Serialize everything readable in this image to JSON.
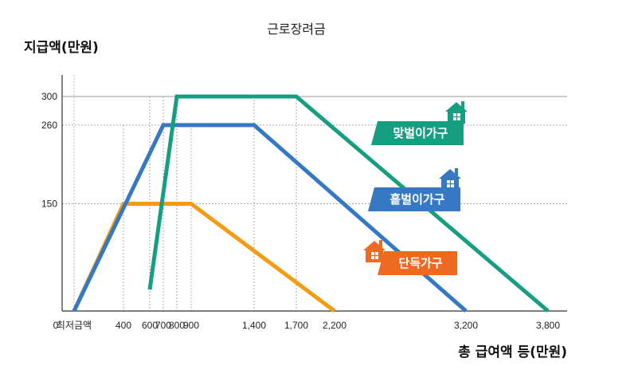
{
  "chart_data": {
    "type": "line",
    "title": "근로장려금",
    "ylabel": "지급액(만원)",
    "xlabel": "총 급여액 등(만원)",
    "x_tick_labels": [
      "0",
      "최저금액",
      "400",
      "600",
      "700",
      "800",
      "900",
      "1,400",
      "1,700",
      "2,200",
      "3,200",
      "3,800"
    ],
    "y_tick_labels": [
      "150",
      "260",
      "300"
    ],
    "ylim": [
      0,
      300
    ],
    "grid": "dotted reference lines at breakpoints",
    "series": [
      {
        "name": "단독가구",
        "color": "#f39c12",
        "label_color": "#ef6a21",
        "points": [
          [
            "최저금액",
            0
          ],
          [
            400,
            150
          ],
          [
            900,
            150
          ],
          [
            2200,
            0
          ]
        ]
      },
      {
        "name": "홑벌이가구",
        "color": "#3578c4",
        "label_color": "#3578c4",
        "points": [
          [
            "최저금액",
            0
          ],
          [
            700,
            260
          ],
          [
            1400,
            260
          ],
          [
            3200,
            0
          ]
        ]
      },
      {
        "name": "맞벌이가구",
        "color": "#159e80",
        "label_color": "#159e80",
        "points": [
          [
            600,
            30
          ],
          [
            800,
            300
          ],
          [
            1700,
            300
          ],
          [
            3800,
            0
          ]
        ]
      }
    ]
  }
}
